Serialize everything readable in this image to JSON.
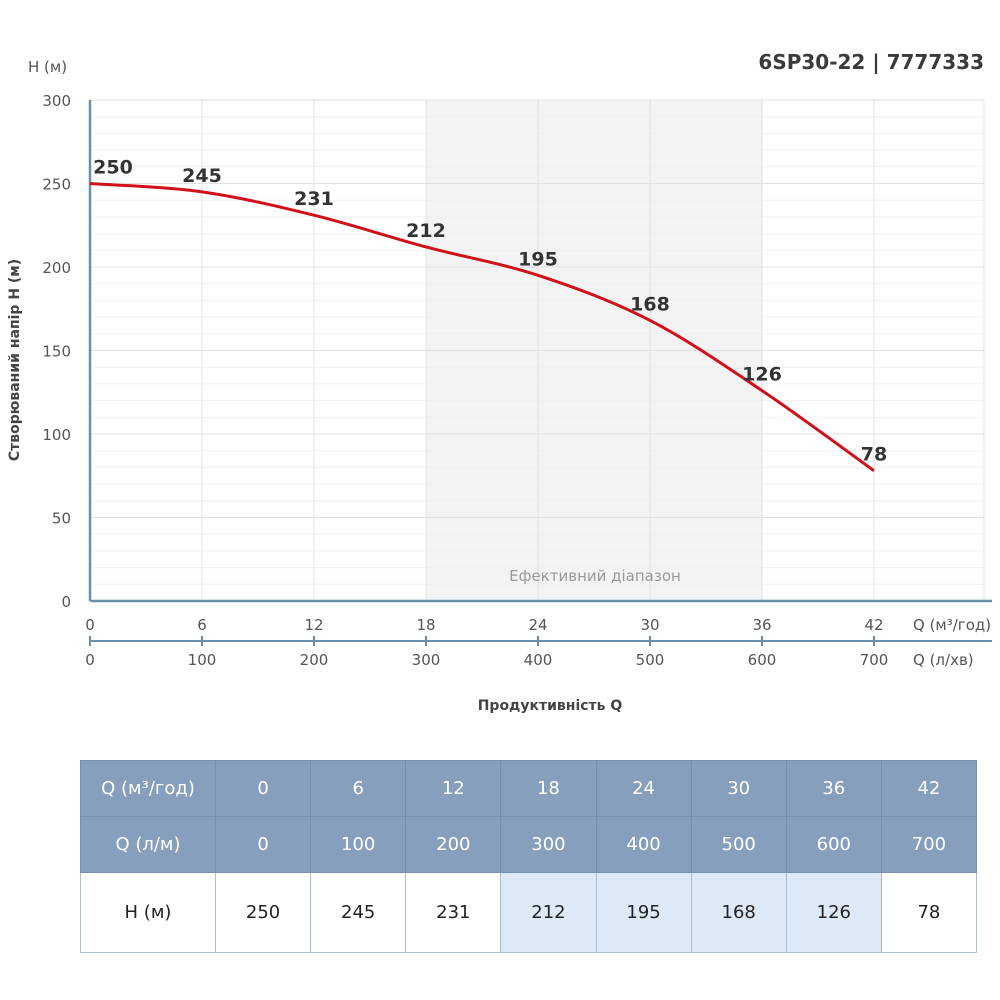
{
  "title": "6SP30-22 | 7777333",
  "chart_data": {
    "type": "line",
    "x_m3h": [
      0,
      6,
      12,
      18,
      24,
      30,
      36,
      42
    ],
    "x_lmin": [
      0,
      100,
      200,
      300,
      400,
      500,
      600,
      700
    ],
    "y": [
      250,
      245,
      231,
      212,
      195,
      168,
      126,
      78
    ],
    "data_labels": [
      "250",
      "245",
      "231",
      "212",
      "195",
      "168",
      "126",
      "78"
    ],
    "ylabel": "Створюваний напір H (м)",
    "y_unit_label": "H (м)",
    "xlabel": "Продуктивність Q",
    "x_unit_label_1": "Q (м³/год)",
    "x_unit_label_2": "Q (л/хв)",
    "ylim": [
      0,
      300
    ],
    "xlim": [
      0,
      42
    ],
    "y_ticks": [
      "0",
      "50",
      "100",
      "150",
      "200",
      "250",
      "300"
    ],
    "x_ticks_1": [
      "0",
      "6",
      "12",
      "18",
      "24",
      "30",
      "36",
      "42"
    ],
    "x_ticks_2": [
      "0",
      "100",
      "200",
      "300",
      "400",
      "500",
      "600",
      "700"
    ],
    "efficient_range": [
      18,
      36
    ],
    "efficient_range_label": "Ефективний діапазон",
    "grid": true,
    "line_color": "#d0101b",
    "axis_color": "#6a8fa8",
    "range_color": "#f3f3f3"
  },
  "table": {
    "rows": [
      {
        "label": "Q (м³/год)",
        "values": [
          "0",
          "6",
          "12",
          "18",
          "24",
          "30",
          "36",
          "42"
        ]
      },
      {
        "label": "Q (л/м)",
        "values": [
          "0",
          "100",
          "200",
          "300",
          "400",
          "500",
          "600",
          "700"
        ]
      },
      {
        "label": "H (м)",
        "values": [
          "250",
          "245",
          "231",
          "212",
          "195",
          "168",
          "126",
          "78"
        ]
      }
    ],
    "highlighted_columns": [
      3,
      4,
      5,
      6
    ],
    "header_color": "#869fbc",
    "highlight_color": "#dce9f7"
  }
}
